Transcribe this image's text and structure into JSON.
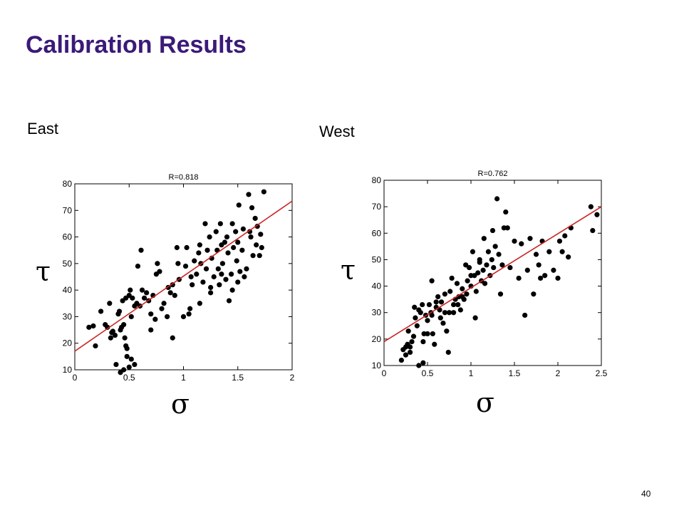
{
  "slide": {
    "title": "Calibration Results",
    "page_number": "40",
    "east_label": "East",
    "west_label": "West",
    "ylabel_symbol": "τ",
    "xlabel_symbol": "σ",
    "title_color": "#3b1a78"
  },
  "chart_data": [
    {
      "type": "scatter",
      "title": "R=0.818",
      "xlim": [
        0,
        2
      ],
      "ylim": [
        10,
        80
      ],
      "xticks": [
        "0",
        "0.5",
        "1",
        "1.5",
        "2"
      ],
      "yticks": [
        "10",
        "20",
        "30",
        "40",
        "50",
        "60",
        "70",
        "80"
      ],
      "xlabel": "σ",
      "ylabel": "τ",
      "grid": false,
      "colors": {
        "points": "#000000",
        "fit": "#cc2222"
      },
      "fit_line": {
        "x": [
          0,
          2
        ],
        "y": [
          17,
          73.5
        ]
      },
      "points": [
        [
          0.13,
          26
        ],
        [
          0.17,
          26.5
        ],
        [
          0.19,
          19
        ],
        [
          0.24,
          32
        ],
        [
          0.28,
          27
        ],
        [
          0.3,
          26
        ],
        [
          0.32,
          35
        ],
        [
          0.33,
          22
        ],
        [
          0.34,
          24
        ],
        [
          0.35,
          24.5
        ],
        [
          0.37,
          23
        ],
        [
          0.4,
          31
        ],
        [
          0.41,
          32
        ],
        [
          0.42,
          25
        ],
        [
          0.43,
          26
        ],
        [
          0.44,
          36
        ],
        [
          0.45,
          27
        ],
        [
          0.46,
          22
        ],
        [
          0.47,
          19
        ],
        [
          0.48,
          18
        ],
        [
          0.47,
          37
        ],
        [
          0.5,
          38
        ],
        [
          0.51,
          40
        ],
        [
          0.52,
          30
        ],
        [
          0.53,
          37
        ],
        [
          0.55,
          34
        ],
        [
          0.57,
          35
        ],
        [
          0.58,
          49
        ],
        [
          0.6,
          34
        ],
        [
          0.61,
          55
        ],
        [
          0.62,
          40
        ],
        [
          0.64,
          37
        ],
        [
          0.66,
          39
        ],
        [
          0.68,
          36
        ],
        [
          0.7,
          31
        ],
        [
          0.7,
          25
        ],
        [
          0.72,
          38
        ],
        [
          0.74,
          29
        ],
        [
          0.75,
          46
        ],
        [
          0.76,
          50
        ],
        [
          0.78,
          47
        ],
        [
          0.8,
          33
        ],
        [
          0.82,
          35
        ],
        [
          0.85,
          30
        ],
        [
          0.86,
          41
        ],
        [
          0.88,
          39
        ],
        [
          0.9,
          42
        ],
        [
          0.92,
          38
        ],
        [
          0.94,
          56
        ],
        [
          0.95,
          50
        ],
        [
          0.96,
          44
        ],
        [
          1.0,
          30
        ],
        [
          1.02,
          49
        ],
        [
          1.03,
          56
        ],
        [
          1.05,
          31
        ],
        [
          1.06,
          33
        ],
        [
          1.07,
          45
        ],
        [
          1.08,
          42
        ],
        [
          1.1,
          51
        ],
        [
          1.12,
          46
        ],
        [
          1.14,
          54
        ],
        [
          1.15,
          57
        ],
        [
          1.16,
          50
        ],
        [
          1.18,
          43
        ],
        [
          1.2,
          65
        ],
        [
          1.21,
          48
        ],
        [
          1.22,
          55
        ],
        [
          1.24,
          60
        ],
        [
          1.25,
          39
        ],
        [
          1.26,
          52
        ],
        [
          1.28,
          45
        ],
        [
          1.3,
          62
        ],
        [
          1.31,
          55
        ],
        [
          1.32,
          48
        ],
        [
          1.33,
          42
        ],
        [
          1.34,
          65
        ],
        [
          1.35,
          57
        ],
        [
          1.36,
          50
        ],
        [
          1.38,
          58
        ],
        [
          1.39,
          44
        ],
        [
          1.4,
          60
        ],
        [
          1.41,
          54
        ],
        [
          1.42,
          36
        ],
        [
          1.44,
          46
        ],
        [
          1.45,
          65
        ],
        [
          1.46,
          56
        ],
        [
          1.48,
          62
        ],
        [
          1.49,
          51
        ],
        [
          1.5,
          58
        ],
        [
          1.51,
          72
        ],
        [
          1.52,
          47
        ],
        [
          1.54,
          55
        ],
        [
          1.55,
          63
        ],
        [
          1.56,
          45
        ],
        [
          1.58,
          48
        ],
        [
          1.6,
          76
        ],
        [
          1.61,
          62
        ],
        [
          1.62,
          60
        ],
        [
          1.63,
          71
        ],
        [
          1.64,
          53
        ],
        [
          1.66,
          67
        ],
        [
          1.67,
          57
        ],
        [
          1.68,
          64
        ],
        [
          1.7,
          53
        ],
        [
          1.71,
          61
        ],
        [
          1.72,
          56
        ],
        [
          1.74,
          77
        ],
        [
          1.5,
          43
        ],
        [
          1.35,
          46
        ],
        [
          1.25,
          41
        ],
        [
          1.15,
          35
        ],
        [
          1.45,
          40
        ],
        [
          0.9,
          22
        ],
        [
          0.55,
          12
        ],
        [
          0.45,
          10
        ],
        [
          0.5,
          11
        ],
        [
          0.52,
          14
        ],
        [
          0.48,
          15
        ],
        [
          0.42,
          9
        ],
        [
          0.38,
          12
        ]
      ]
    },
    {
      "type": "scatter",
      "title": "R=0.762",
      "xlim": [
        0,
        2.5
      ],
      "ylim": [
        10,
        80
      ],
      "xticks": [
        "0",
        "0.5",
        "1",
        "1.5",
        "2",
        "2.5"
      ],
      "yticks": [
        "10",
        "20",
        "30",
        "40",
        "50",
        "60",
        "70",
        "80"
      ],
      "xlabel": "σ",
      "ylabel": "τ",
      "grid": false,
      "colors": {
        "points": "#000000",
        "fit": "#cc2222"
      },
      "fit_line": {
        "x": [
          0,
          2.5
        ],
        "y": [
          19,
          70
        ]
      },
      "points": [
        [
          0.2,
          12
        ],
        [
          0.22,
          16
        ],
        [
          0.25,
          14
        ],
        [
          0.27,
          18
        ],
        [
          0.28,
          23
        ],
        [
          0.3,
          17
        ],
        [
          0.32,
          19
        ],
        [
          0.34,
          21
        ],
        [
          0.35,
          32
        ],
        [
          0.36,
          28
        ],
        [
          0.38,
          25
        ],
        [
          0.4,
          31
        ],
        [
          0.42,
          30
        ],
        [
          0.44,
          33
        ],
        [
          0.45,
          11
        ],
        [
          0.46,
          22
        ],
        [
          0.48,
          29
        ],
        [
          0.5,
          27
        ],
        [
          0.52,
          33
        ],
        [
          0.54,
          30
        ],
        [
          0.55,
          42
        ],
        [
          0.56,
          22
        ],
        [
          0.58,
          18
        ],
        [
          0.6,
          32
        ],
        [
          0.62,
          36
        ],
        [
          0.64,
          31
        ],
        [
          0.65,
          28
        ],
        [
          0.66,
          34
        ],
        [
          0.68,
          26
        ],
        [
          0.7,
          37
        ],
        [
          0.72,
          23
        ],
        [
          0.74,
          15
        ],
        [
          0.75,
          30
        ],
        [
          0.76,
          38
        ],
        [
          0.78,
          43
        ],
        [
          0.8,
          30
        ],
        [
          0.82,
          35
        ],
        [
          0.84,
          41
        ],
        [
          0.85,
          33
        ],
        [
          0.86,
          36
        ],
        [
          0.88,
          31
        ],
        [
          0.9,
          39
        ],
        [
          0.92,
          35
        ],
        [
          0.94,
          48
        ],
        [
          0.95,
          37
        ],
        [
          0.96,
          42
        ],
        [
          0.98,
          47
        ],
        [
          1.0,
          40
        ],
        [
          1.02,
          53
        ],
        [
          1.04,
          44
        ],
        [
          1.05,
          28
        ],
        [
          1.06,
          38
        ],
        [
          1.08,
          45
        ],
        [
          1.1,
          50
        ],
        [
          1.12,
          42
        ],
        [
          1.14,
          46
        ],
        [
          1.15,
          58
        ],
        [
          1.16,
          41
        ],
        [
          1.18,
          48
        ],
        [
          1.2,
          53
        ],
        [
          1.22,
          44
        ],
        [
          1.24,
          50
        ],
        [
          1.25,
          61
        ],
        [
          1.26,
          47
        ],
        [
          1.28,
          55
        ],
        [
          1.3,
          73
        ],
        [
          1.32,
          52
        ],
        [
          1.34,
          37
        ],
        [
          1.36,
          48
        ],
        [
          1.38,
          62
        ],
        [
          1.4,
          68
        ],
        [
          1.42,
          62
        ],
        [
          1.45,
          47
        ],
        [
          1.5,
          57
        ],
        [
          1.55,
          43
        ],
        [
          1.58,
          56
        ],
        [
          1.62,
          29
        ],
        [
          1.65,
          46
        ],
        [
          1.68,
          58
        ],
        [
          1.72,
          37
        ],
        [
          1.75,
          52
        ],
        [
          1.78,
          48
        ],
        [
          1.8,
          43
        ],
        [
          1.82,
          57
        ],
        [
          1.85,
          44
        ],
        [
          1.9,
          53
        ],
        [
          1.95,
          46
        ],
        [
          2.0,
          43
        ],
        [
          2.02,
          57
        ],
        [
          2.05,
          53
        ],
        [
          2.08,
          59
        ],
        [
          2.12,
          51
        ],
        [
          2.15,
          62
        ],
        [
          2.38,
          70
        ],
        [
          2.4,
          61
        ],
        [
          2.45,
          67
        ],
        [
          0.3,
          15
        ],
        [
          0.5,
          22
        ],
        [
          0.55,
          29
        ],
        [
          0.6,
          34
        ],
        [
          0.7,
          30
        ],
        [
          0.8,
          33
        ],
        [
          0.9,
          36
        ],
        [
          1.0,
          44
        ],
        [
          1.1,
          49
        ],
        [
          0.45,
          19
        ],
        [
          0.25,
          17
        ],
        [
          0.4,
          10
        ]
      ]
    }
  ]
}
